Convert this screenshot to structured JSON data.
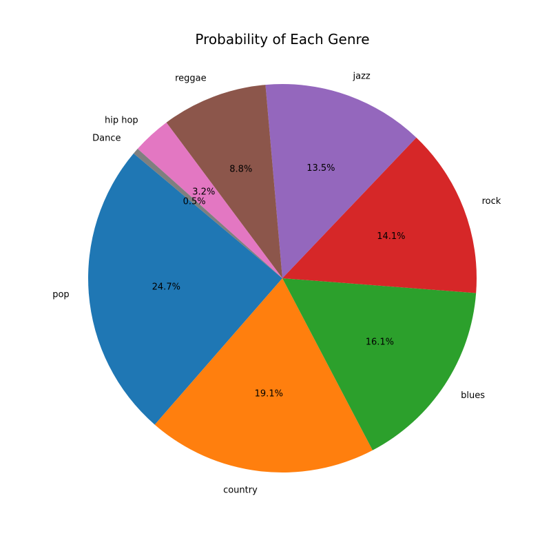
{
  "chart_data": {
    "type": "pie",
    "title": "Probability of Each Genre",
    "start_angle": 140,
    "direction": "counterclockwise",
    "slices": [
      {
        "label": "pop",
        "value": 24.7,
        "pct_label": "24.7%",
        "color": "#1f77b4"
      },
      {
        "label": "country",
        "value": 19.1,
        "pct_label": "19.1%",
        "color": "#ff7f0e"
      },
      {
        "label": "blues",
        "value": 16.1,
        "pct_label": "16.1%",
        "color": "#2ca02c"
      },
      {
        "label": "rock",
        "value": 14.1,
        "pct_label": "14.1%",
        "color": "#d62728"
      },
      {
        "label": "jazz",
        "value": 13.5,
        "pct_label": "13.5%",
        "color": "#9467bd"
      },
      {
        "label": "reggae",
        "value": 8.8,
        "pct_label": "8.8%",
        "color": "#8c564b"
      },
      {
        "label": "hip hop",
        "value": 3.2,
        "pct_label": "3.2%",
        "color": "#e377c2"
      },
      {
        "label": "Dance",
        "value": 0.5,
        "pct_label": "0.5%",
        "color": "#7f7f7f"
      }
    ]
  }
}
